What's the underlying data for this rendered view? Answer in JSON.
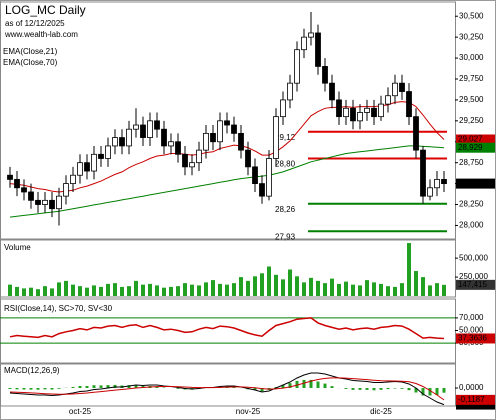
{
  "chart_data": [
    {
      "type": "candlestick",
      "title": "LOG_MC Daily",
      "subtitle": "as of 12/12/2025",
      "source": "www.wealth-lab.com",
      "categories": [
        null,
        null,
        null,
        null,
        null,
        null,
        null,
        null,
        null,
        null,
        "oct-25",
        null,
        null,
        null,
        null,
        null,
        null,
        null,
        null,
        null,
        null,
        null,
        null,
        null,
        null,
        null,
        null,
        null,
        null,
        null,
        null,
        null,
        null,
        null,
        "nov-25",
        null,
        null,
        null,
        null,
        null,
        null,
        null,
        null,
        null,
        null,
        null,
        null,
        null,
        null,
        null,
        null,
        null,
        null,
        "dic-25",
        null,
        null,
        null,
        null,
        null,
        null,
        null,
        null,
        null
      ],
      "open": [
        28600,
        28550,
        28450,
        28400,
        28300,
        28250,
        28300,
        28200,
        28350,
        28500,
        28600,
        28750,
        28650,
        28850,
        28800,
        28950,
        29050,
        28950,
        29150,
        29200,
        29050,
        29250,
        29150,
        28950,
        29000,
        28850,
        28700,
        28750,
        28900,
        29100,
        29000,
        29250,
        29200,
        29100,
        28900,
        28700,
        28500,
        28350,
        28800,
        29300,
        29500,
        29700,
        30100,
        30250,
        30300,
        29900,
        29700,
        29500,
        29300,
        29400,
        29250,
        29350,
        29400,
        29300,
        29450,
        29550,
        29700,
        29600,
        29300,
        28900,
        28350,
        28450,
        28550
      ],
      "high": [
        28700,
        28650,
        28550,
        28500,
        28400,
        28400,
        28400,
        28450,
        28600,
        28700,
        28850,
        28850,
        28950,
        28950,
        29050,
        29150,
        29150,
        29250,
        29400,
        29300,
        29350,
        29350,
        29250,
        29100,
        29100,
        28950,
        28850,
        29000,
        29200,
        29200,
        29350,
        29350,
        29300,
        29200,
        29000,
        28800,
        28600,
        28900,
        29400,
        29600,
        29800,
        30200,
        30350,
        30550,
        30400,
        30000,
        29800,
        29600,
        29500,
        29500,
        29450,
        29500,
        29500,
        29550,
        29650,
        29800,
        29800,
        29700,
        29400,
        28950,
        28550,
        28650,
        28650
      ],
      "low": [
        28450,
        28350,
        28300,
        28200,
        28150,
        28150,
        28100,
        28000,
        28250,
        28400,
        28500,
        28550,
        28550,
        28700,
        28700,
        28850,
        28850,
        28850,
        29050,
        28950,
        28950,
        29050,
        28850,
        28850,
        28750,
        28600,
        28600,
        28650,
        28800,
        28900,
        28900,
        29100,
        29000,
        28800,
        28600,
        28400,
        28260,
        28300,
        28700,
        29200,
        29400,
        29600,
        30000,
        30150,
        29800,
        29600,
        29400,
        29200,
        29200,
        29150,
        29150,
        29250,
        29200,
        29250,
        29350,
        29450,
        29500,
        29200,
        28800,
        28260,
        28300,
        28350,
        28400
      ],
      "close": [
        28550,
        28450,
        28400,
        28300,
        28250,
        28300,
        28200,
        28350,
        28500,
        28600,
        28750,
        28650,
        28850,
        28800,
        28950,
        29050,
        28950,
        29150,
        29200,
        29050,
        29250,
        29150,
        28950,
        29000,
        28850,
        28700,
        28750,
        28900,
        29100,
        29000,
        29250,
        29200,
        29100,
        28900,
        28700,
        28500,
        28350,
        28800,
        29300,
        29500,
        29700,
        30100,
        30250,
        30300,
        29900,
        29700,
        29500,
        29300,
        29400,
        29250,
        29350,
        29400,
        29300,
        29450,
        29550,
        29700,
        29600,
        29300,
        28900,
        28350,
        28450,
        28550,
        28500
      ],
      "close_label": "28,500",
      "series": [
        {
          "name": "EMA(Close,21)",
          "color": "#cc0000",
          "last_label": "29,027",
          "values": [
            28500,
            28490,
            28480,
            28460,
            28440,
            28430,
            28410,
            28400,
            28410,
            28420,
            28450,
            28470,
            28500,
            28530,
            28570,
            28610,
            28640,
            28690,
            28730,
            28760,
            28800,
            28830,
            28840,
            28860,
            28860,
            28850,
            28840,
            28850,
            28870,
            28880,
            28920,
            28940,
            28960,
            28950,
            28930,
            28890,
            28840,
            28840,
            28880,
            28940,
            29010,
            29110,
            29210,
            29310,
            29360,
            29400,
            29410,
            29410,
            29420,
            29410,
            29420,
            29420,
            29420,
            29430,
            29440,
            29470,
            29480,
            29470,
            29420,
            29320,
            29210,
            29110,
            29027
          ]
        },
        {
          "name": "EMA(Close,70)",
          "color": "#008000",
          "last_label": "28,929",
          "values": [
            28100,
            28110,
            28120,
            28130,
            28140,
            28150,
            28160,
            28170,
            28185,
            28200,
            28215,
            28230,
            28245,
            28260,
            28275,
            28290,
            28305,
            28320,
            28335,
            28350,
            28365,
            28380,
            28395,
            28410,
            28425,
            28440,
            28455,
            28470,
            28485,
            28500,
            28515,
            28530,
            28545,
            28560,
            28570,
            28580,
            28590,
            28600,
            28620,
            28640,
            28670,
            28700,
            28730,
            28760,
            28780,
            28800,
            28820,
            28840,
            28860,
            28870,
            28880,
            28890,
            28900,
            28910,
            28920,
            28930,
            28940,
            28950,
            28950,
            28945,
            28940,
            28935,
            28929
          ]
        }
      ],
      "levels": [
        {
          "value": 29120,
          "label": "29,12",
          "color": "#dd0000"
        },
        {
          "value": 28800,
          "label": "28,80",
          "color": "#dd0000"
        },
        {
          "value": 28260,
          "label": "28,26",
          "color": "#008000"
        },
        {
          "value": 27930,
          "label": "27,93",
          "color": "#008000"
        }
      ],
      "ylim": [
        27850,
        30670
      ],
      "yticks": [
        {
          "value": 28000,
          "label": "28,000"
        },
        {
          "value": 28250,
          "label": "28,250"
        },
        {
          "value": 28500,
          "label": "28,500"
        },
        {
          "value": 28750,
          "label": "28,750"
        },
        {
          "value": 29000,
          "label": "29,000"
        },
        {
          "value": 29250,
          "label": "29,250"
        },
        {
          "value": 29500,
          "label": "29,500"
        },
        {
          "value": 29750,
          "label": "29,750"
        },
        {
          "value": 30000,
          "label": "30,000"
        },
        {
          "value": 30250,
          "label": "30,250"
        },
        {
          "value": 30500,
          "label": "30,500"
        }
      ]
    },
    {
      "type": "bar",
      "title": "Volume",
      "color": "#22a022",
      "last_label": "147,415",
      "values": [
        150000,
        120000,
        100000,
        110000,
        90000,
        130000,
        100000,
        180000,
        200000,
        150000,
        130000,
        110000,
        140000,
        120000,
        160000,
        170000,
        120000,
        130000,
        200000,
        150000,
        160000,
        140000,
        110000,
        120000,
        130000,
        170000,
        150000,
        140000,
        180000,
        210000,
        160000,
        150000,
        170000,
        250000,
        200000,
        260000,
        300000,
        390000,
        280000,
        220000,
        350000,
        260000,
        180000,
        240000,
        200000,
        170000,
        230000,
        160000,
        190000,
        150000,
        140000,
        210000,
        180000,
        160000,
        130000,
        120000,
        170000,
        700000,
        330000,
        250000,
        140000,
        170000,
        147415
      ],
      "ylim": [
        0,
        740000
      ],
      "yticks": [
        {
          "value": 250000,
          "label": "250,000"
        },
        {
          "value": 500000,
          "label": "500,000"
        }
      ]
    },
    {
      "type": "line",
      "title": "RSI(Close,14), SC>70, SV<30",
      "color": "#cc0000",
      "last_label": "37,3636",
      "values": [
        40,
        42,
        41,
        40,
        39,
        42,
        40,
        45,
        48,
        50,
        53,
        51,
        55,
        54,
        57,
        58,
        55,
        58,
        59,
        55,
        58,
        55,
        51,
        52,
        50,
        47,
        48,
        52,
        55,
        53,
        57,
        56,
        54,
        50,
        46,
        43,
        41,
        50,
        58,
        61,
        64,
        68,
        69,
        70,
        62,
        58,
        55,
        52,
        54,
        51,
        53,
        54,
        52,
        55,
        56,
        58,
        57,
        52,
        45,
        38,
        39,
        38,
        37.3636
      ],
      "bands": [
        30,
        70
      ],
      "band_color": "#008000",
      "ylim": [
        0,
        100
      ],
      "yticks": [
        {
          "value": 30,
          "label": "30,000"
        },
        {
          "value": 50,
          "label": "50,000"
        },
        {
          "value": 70,
          "label": "70,000"
        }
      ]
    },
    {
      "type": "macd",
      "title": "MACD(12,26,9)",
      "series": [
        {
          "color": "#000000",
          "last_label": "-0,1656",
          "values": [
            -0.05,
            -0.055,
            -0.06,
            -0.065,
            -0.07,
            -0.07,
            -0.075,
            -0.07,
            -0.06,
            -0.05,
            -0.035,
            -0.03,
            -0.015,
            -0.01,
            0,
            0.01,
            0.01,
            0.02,
            0.03,
            0.025,
            0.03,
            0.03,
            0.02,
            0.015,
            0.005,
            -0.005,
            -0.01,
            -0.005,
            0.005,
            0.005,
            0.015,
            0.02,
            0.02,
            0.01,
            -0.005,
            -0.02,
            -0.04,
            -0.03,
            0,
            0.03,
            0.06,
            0.1,
            0.13,
            0.15,
            0.15,
            0.14,
            0.12,
            0.1,
            0.09,
            0.075,
            0.07,
            0.065,
            0.055,
            0.055,
            0.06,
            0.065,
            0.06,
            0.04,
            0,
            -0.06,
            -0.1,
            -0.14,
            -0.1656
          ]
        },
        {
          "color": "#cc0000",
          "last_label": "-0,1187",
          "values": [
            -0.04,
            -0.042,
            -0.045,
            -0.049,
            -0.053,
            -0.057,
            -0.06,
            -0.062,
            -0.062,
            -0.06,
            -0.055,
            -0.05,
            -0.043,
            -0.036,
            -0.029,
            -0.021,
            -0.015,
            -0.008,
            0,
            0.005,
            0.01,
            0.014,
            0.015,
            0.015,
            0.013,
            0.01,
            0.006,
            0.004,
            0.004,
            0.004,
            0.006,
            0.009,
            0.011,
            0.011,
            0.008,
            0.002,
            -0.006,
            -0.011,
            -0.009,
            -0.001,
            0.011,
            0.029,
            0.049,
            0.069,
            0.085,
            0.096,
            0.101,
            0.101,
            0.099,
            0.094,
            0.089,
            0.084,
            0.078,
            0.073,
            0.071,
            0.07,
            0.068,
            0.062,
            0.045,
            0.015,
            -0.025,
            -0.07,
            -0.1187
          ]
        }
      ],
      "histogram": {
        "color": "#22a022",
        "values": [
          -0.01,
          -0.013,
          -0.015,
          -0.016,
          -0.017,
          -0.013,
          -0.015,
          -0.008,
          0.002,
          0.01,
          0.02,
          0.02,
          0.028,
          0.026,
          0.029,
          0.031,
          0.025,
          0.028,
          0.03,
          0.02,
          0.02,
          0.016,
          0.005,
          0,
          -0.008,
          -0.015,
          -0.016,
          -0.009,
          0.001,
          0.001,
          0.009,
          0.011,
          0.009,
          -0.001,
          -0.013,
          -0.022,
          -0.034,
          -0.019,
          0.009,
          0.031,
          0.049,
          0.071,
          0.081,
          0.081,
          0.065,
          0.044,
          0.019,
          -0.001,
          -0.009,
          -0.019,
          -0.019,
          -0.019,
          -0.023,
          -0.018,
          -0.011,
          -0.005,
          -0.008,
          -0.022,
          -0.045,
          -0.075,
          -0.075,
          -0.07,
          -0.047
        ]
      },
      "ylim": [
        -0.17,
        0.24
      ],
      "yticks": [
        {
          "value": 0,
          "label": "0,0000"
        }
      ]
    }
  ]
}
